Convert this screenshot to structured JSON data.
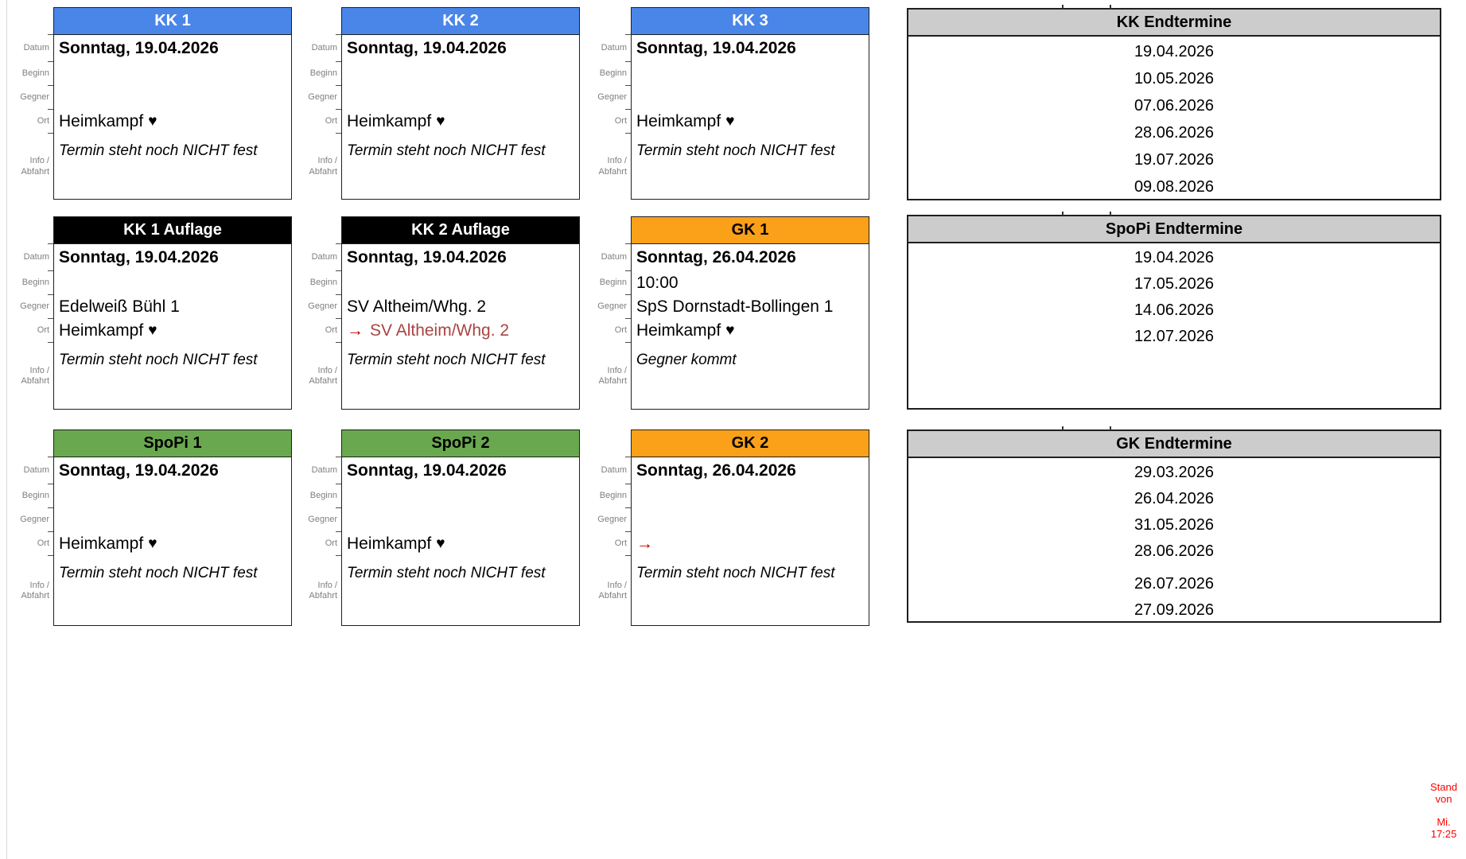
{
  "labels": {
    "datum": "Datum",
    "beginn": "Beginn",
    "gegner": "Gegner",
    "ort": "Ort",
    "info_line1": "Info /",
    "info_line2": "Abfahrt"
  },
  "colors": {
    "kk_header": "#4a86e8",
    "auflage_header": "#000000",
    "gk_header": "#fba019",
    "spopi_header": "#6aa84f",
    "endtermine_header": "#cccccc",
    "away_text": "#a94442",
    "arrow": "#c00000",
    "stand_note": "#ff0000"
  },
  "cards": [
    {
      "title": "KK 1",
      "datum": "Sonntag, 19.04.2026",
      "beginn": "",
      "gegner": "",
      "ort_arrow": "",
      "ort": "Heimkampf",
      "ort_icon": "♥",
      "info": "Termin steht noch NICHT fest"
    },
    {
      "title": "KK 2",
      "datum": "Sonntag, 19.04.2026",
      "beginn": "",
      "gegner": "",
      "ort_arrow": "",
      "ort": "Heimkampf",
      "ort_icon": "♥",
      "info": "Termin steht noch NICHT fest"
    },
    {
      "title": "KK 3",
      "datum": "Sonntag, 19.04.2026",
      "beginn": "",
      "gegner": "",
      "ort_arrow": "",
      "ort": "Heimkampf",
      "ort_icon": "♥",
      "info": "Termin steht noch NICHT fest"
    },
    {
      "title": "KK 1 Auflage",
      "datum": "Sonntag, 19.04.2026",
      "beginn": "",
      "gegner": "Edelweiß Bühl 1",
      "ort_arrow": "",
      "ort": "Heimkampf",
      "ort_icon": "♥",
      "info": "Termin steht noch NICHT fest"
    },
    {
      "title": "KK 2 Auflage",
      "datum": "Sonntag, 19.04.2026",
      "beginn": "",
      "gegner": "SV Altheim/Whg. 2",
      "ort_arrow": "→",
      "ort": "SV Altheim/Whg. 2",
      "ort_icon": "",
      "info": "Termin steht noch NICHT fest"
    },
    {
      "title": "GK 1",
      "datum": "Sonntag, 26.04.2026",
      "beginn": "10:00",
      "gegner": "SpS Dornstadt-Bollingen 1",
      "ort_arrow": "",
      "ort": "Heimkampf",
      "ort_icon": "♥",
      "info": "Gegner kommt"
    },
    {
      "title": "SpoPi 1",
      "datum": "Sonntag, 19.04.2026",
      "beginn": "",
      "gegner": "",
      "ort_arrow": "",
      "ort": "Heimkampf",
      "ort_icon": "♥",
      "info": "Termin steht noch NICHT fest"
    },
    {
      "title": "SpoPi 2",
      "datum": "Sonntag, 19.04.2026",
      "beginn": "",
      "gegner": "",
      "ort_arrow": "",
      "ort": "Heimkampf",
      "ort_icon": "♥",
      "info": "Termin steht noch NICHT fest"
    },
    {
      "title": "GK 2",
      "datum": "Sonntag, 26.04.2026",
      "beginn": "",
      "gegner": "",
      "ort_arrow": "→",
      "ort": "",
      "ort_icon": "",
      "info": "Termin steht noch NICHT fest"
    }
  ],
  "tables": [
    {
      "title": "KK Endtermine",
      "dates": [
        "19.04.2026",
        "10.05.2026",
        "07.06.2026",
        "28.06.2026",
        "19.07.2026",
        "09.08.2026"
      ]
    },
    {
      "title": "SpoPi Endtermine",
      "dates": [
        "19.04.2026",
        "17.05.2026",
        "14.06.2026",
        "12.07.2026"
      ]
    },
    {
      "title": "GK Endtermine",
      "dates": [
        "29.03.2026",
        "26.04.2026",
        "31.05.2026",
        "28.06.2026",
        "26.07.2026",
        "27.09.2026"
      ]
    }
  ],
  "stand_note": {
    "line1": "Stand",
    "line2": "von",
    "line3": "Mi.",
    "line4": "17:25"
  }
}
